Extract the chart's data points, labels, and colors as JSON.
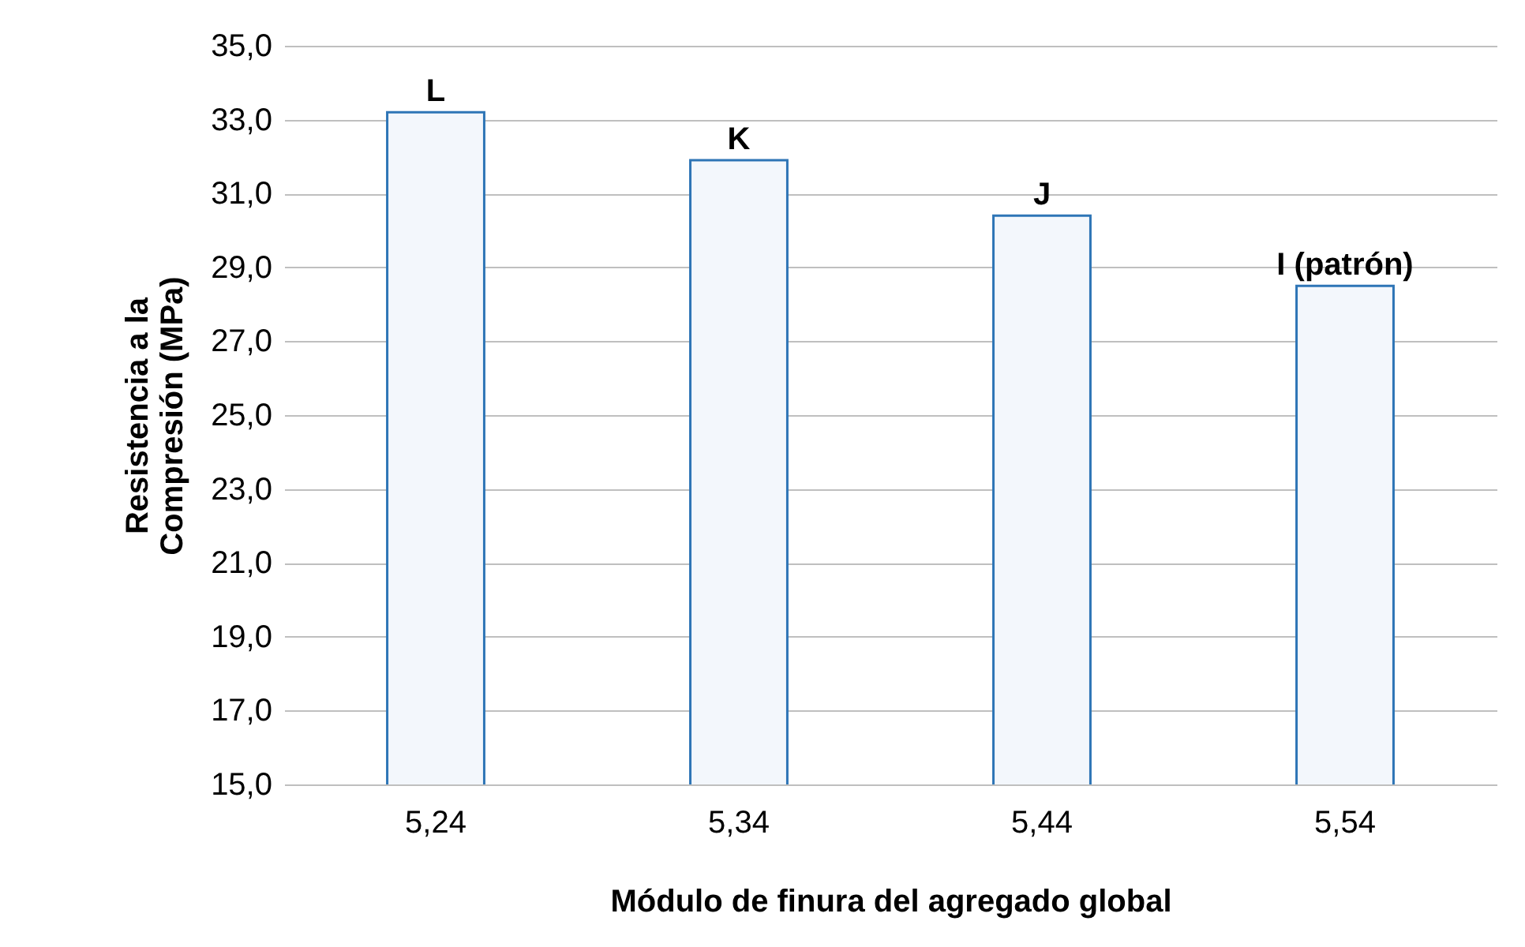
{
  "chart_data": {
    "type": "bar",
    "xlabel": "Módulo de finura del agregado global",
    "ylabel": "Resistencia a la\nCompresión (MPa)",
    "categories": [
      "5,24",
      "5,34",
      "5,44",
      "5,54"
    ],
    "values": [
      33.2,
      31.9,
      30.4,
      28.5
    ],
    "color": "#f3f7fc",
    "ylim": [
      15,
      35
    ],
    "yticks": [
      {
        "value": 15,
        "label": "15,0"
      },
      {
        "value": 17,
        "label": "17,0"
      },
      {
        "value": 19,
        "label": "19,0"
      },
      {
        "value": 21,
        "label": "21,0"
      },
      {
        "value": 23,
        "label": "23,0"
      },
      {
        "value": 25,
        "label": "25,0"
      },
      {
        "value": 27,
        "label": "27,0"
      },
      {
        "value": 29,
        "label": "29,0"
      },
      {
        "value": 31,
        "label": "31,0"
      },
      {
        "value": 33,
        "label": "33,0"
      },
      {
        "value": 35,
        "label": "35,0"
      }
    ],
    "grid": "y",
    "annotations": [
      {
        "text": "L",
        "x": "5,24",
        "y": 33.2
      },
      {
        "text": "K",
        "x": "5,34",
        "y": 31.9
      },
      {
        "text": "J",
        "x": "5,44",
        "y": 30.4
      },
      {
        "text": "I (patrón)",
        "x": "5,54",
        "y": 28.5
      }
    ]
  }
}
